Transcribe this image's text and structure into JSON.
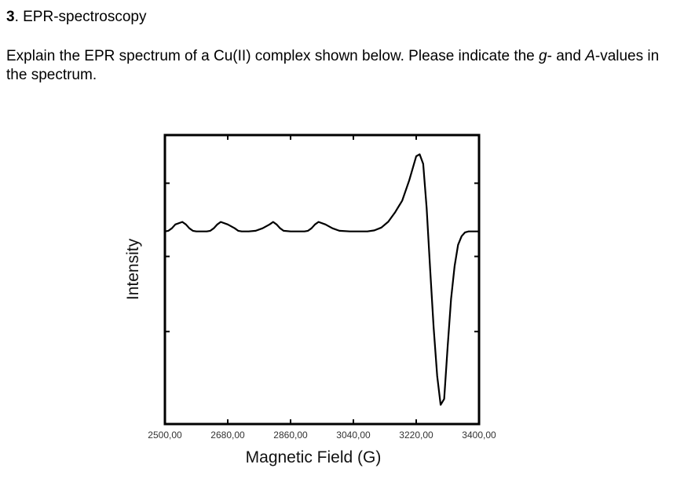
{
  "heading": {
    "number": "3",
    "text": ". EPR-spectroscopy"
  },
  "question": {
    "part1": "Explain the EPR spectrum of a Cu(II) complex shown below. Please indicate the ",
    "g_symbol": "g",
    "part2": "- and ",
    "a_symbol": "A",
    "part3": "-values in the spectrum."
  },
  "chart_data": {
    "type": "line",
    "xlabel": "Magnetic Field (G)",
    "ylabel": "Intensity",
    "xlim": [
      2500,
      3400
    ],
    "ylim": [
      -1,
      0.5
    ],
    "x_ticks": [
      2500,
      2680,
      2860,
      3040,
      3220,
      3400
    ],
    "x_tick_labels": [
      "2500,00",
      "2680,00",
      "2860,00",
      "3040,00",
      "3220,00",
      "3400,00"
    ],
    "y_ticks": [
      0.25,
      -0.13,
      -0.52
    ],
    "grid": false,
    "legend": "none",
    "line_color": "#000000",
    "series": [
      {
        "x": [
          2500,
          2510,
          2520,
          2530,
          2550,
          2560,
          2570,
          2580,
          2590,
          2620,
          2630,
          2640,
          2650,
          2660,
          2680,
          2700,
          2710,
          2720,
          2730,
          2740,
          2760,
          2780,
          2800,
          2810,
          2820,
          2830,
          2840,
          2860,
          2880,
          2900,
          2910,
          2920,
          2930,
          2940,
          2960,
          2980,
          3000,
          3030,
          3050,
          3060,
          3070,
          3080,
          3100,
          3120,
          3140,
          3160,
          3180,
          3200,
          3220,
          3230,
          3240,
          3250,
          3260,
          3270,
          3280,
          3290,
          3300,
          3310,
          3320,
          3330,
          3340,
          3350,
          3360,
          3370,
          3380,
          3400
        ],
        "y": [
          0,
          0.003,
          0.016,
          0.036,
          0.049,
          0.036,
          0.016,
          0.003,
          0,
          0,
          0.003,
          0.016,
          0.036,
          0.049,
          0.036,
          0.016,
          0.003,
          0,
          0,
          0,
          0.003,
          0.016,
          0.036,
          0.049,
          0.036,
          0.016,
          0.003,
          0,
          0,
          0,
          0.003,
          0.016,
          0.036,
          0.049,
          0.036,
          0.016,
          0.003,
          0,
          0,
          0,
          0,
          0,
          0.005,
          0.02,
          0.05,
          0.1,
          0.16,
          0.265,
          0.39,
          0.4,
          0.35,
          0.12,
          -0.2,
          -0.5,
          -0.75,
          -0.9,
          -0.87,
          -0.6,
          -0.35,
          -0.18,
          -0.07,
          -0.025,
          -0.005,
          0,
          0,
          0
        ]
      }
    ]
  }
}
